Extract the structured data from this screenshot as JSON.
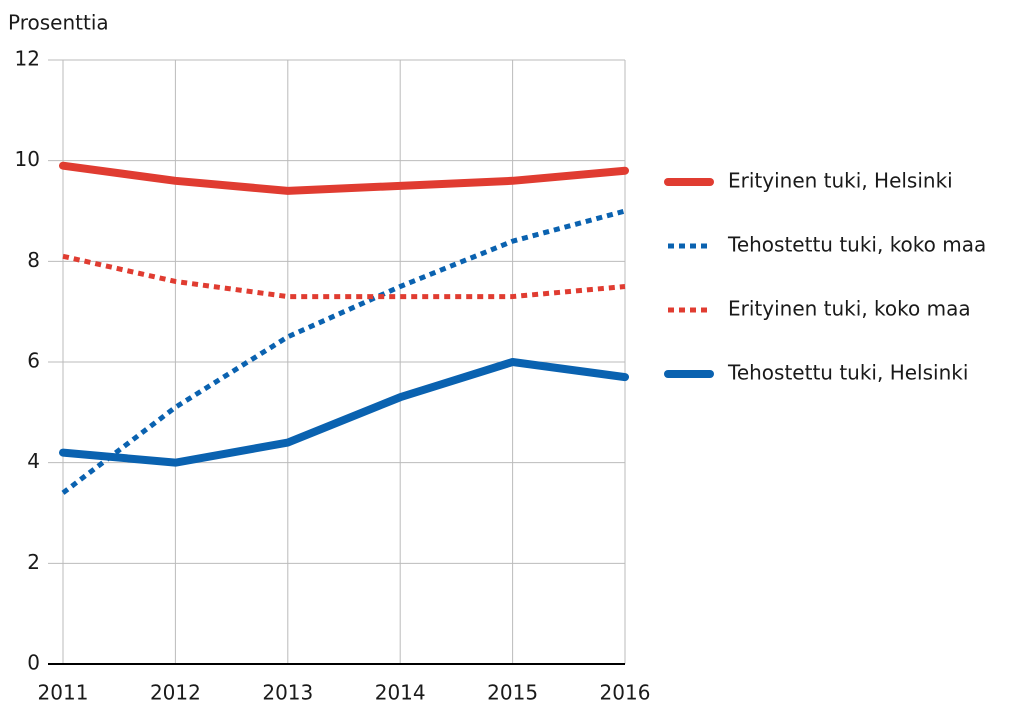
{
  "chart_data": {
    "type": "line",
    "ylabel": "Prosenttia",
    "x": [
      2011,
      2012,
      2013,
      2014,
      2015,
      2016
    ],
    "xlim": [
      2011,
      2016
    ],
    "xticks": [
      2011,
      2012,
      2013,
      2014,
      2015,
      2016
    ],
    "ylim": [
      0,
      12
    ],
    "yticks": [
      0,
      2,
      4,
      6,
      8,
      10,
      12
    ],
    "grid": true,
    "legend": "right",
    "series": [
      {
        "name": "Erityinen tuki, Helsinki",
        "color": "#e03c31",
        "style": "solid",
        "values": [
          9.9,
          9.6,
          9.4,
          9.5,
          9.6,
          9.8
        ]
      },
      {
        "name": "Tehostettu tuki, koko maa",
        "color": "#0a62b0",
        "style": "dotted",
        "values": [
          3.4,
          5.1,
          6.5,
          7.5,
          8.4,
          9.0
        ]
      },
      {
        "name": "Erityinen tuki, koko maa",
        "color": "#e03c31",
        "style": "dotted",
        "values": [
          8.1,
          7.6,
          7.3,
          7.3,
          7.3,
          7.5
        ]
      },
      {
        "name": "Tehostettu tuki, Helsinki",
        "color": "#0a62b0",
        "style": "solid",
        "values": [
          4.2,
          4.0,
          4.4,
          5.3,
          6.0,
          5.7
        ]
      }
    ]
  }
}
